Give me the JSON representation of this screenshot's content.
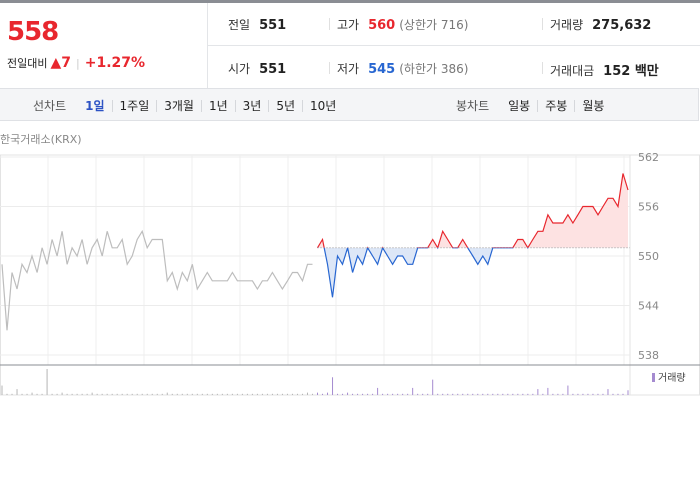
{
  "header": {
    "price": "558",
    "change_label": "전일대비",
    "change": "7",
    "change_rate": "+1.27%"
  },
  "info": {
    "rows": [
      [
        {
          "label": "전일",
          "value": "551"
        },
        {
          "label": "고가",
          "value": "560",
          "note": "(상한가 716)",
          "tone": "up"
        },
        {
          "label": "거래량",
          "value": "275,632"
        }
      ],
      [
        {
          "label": "시가",
          "value": "551"
        },
        {
          "label": "저가",
          "value": "545",
          "note": "(하한가 386)",
          "tone": "down"
        },
        {
          "label": "거래대금",
          "value": "152 백만"
        }
      ]
    ]
  },
  "tabs": {
    "line_label": "선차트",
    "line_periods": [
      "1일",
      "1주일",
      "3개월",
      "1년",
      "3년",
      "5년",
      "10년"
    ],
    "active_index": 0,
    "candle_label": "봉차트",
    "candle_periods": [
      "일봉",
      "주봉",
      "월봉"
    ]
  },
  "chart_data": {
    "type": "line",
    "source": "한국거래소(KRX)",
    "ylim": [
      538,
      562
    ],
    "yticks": [
      562,
      556,
      550,
      544,
      538
    ],
    "grid": true,
    "base": 551,
    "up_color": "#e8272e",
    "down_color": "#2766d1",
    "up_fill": "#fde2e2",
    "down_fill": "#dde7f7",
    "volume_label": "거래량",
    "volume_color": "#a58bd0",
    "series": [
      {
        "color": "#bdbdbd",
        "values": [
          549,
          541,
          548,
          546,
          549,
          548,
          550,
          548,
          551,
          549,
          552,
          550,
          553,
          549,
          551,
          550,
          552,
          549,
          551,
          552,
          550,
          553,
          551,
          551,
          552,
          549,
          550,
          552,
          553,
          551,
          552,
          552,
          552,
          547,
          548,
          546,
          548,
          547,
          549,
          546,
          547,
          548,
          547,
          547,
          547,
          547,
          548,
          547,
          547,
          547,
          547,
          546,
          547,
          547,
          548,
          547,
          546,
          547,
          548,
          548,
          547,
          549,
          549
        ],
        "volume": [
          8,
          1,
          1,
          5,
          1,
          1,
          2,
          1,
          1,
          22,
          1,
          1,
          2,
          1,
          1,
          1,
          1,
          1,
          2,
          1,
          1,
          1,
          1,
          1,
          1,
          1,
          1,
          1,
          1,
          1,
          1,
          1,
          1,
          2,
          1,
          1,
          1,
          1,
          1,
          1,
          1,
          1,
          1,
          1,
          1,
          1,
          1,
          1,
          1,
          1,
          1,
          1,
          1,
          1,
          1,
          1,
          1,
          1,
          1,
          1,
          1,
          2,
          1
        ]
      },
      {
        "values": [
          551,
          552,
          549,
          545,
          550,
          549,
          551,
          548,
          550,
          549,
          551,
          550,
          549,
          551,
          550,
          549,
          550,
          550,
          549,
          549,
          551,
          551,
          551,
          552,
          551,
          553,
          552,
          551,
          551,
          552,
          551,
          550,
          549,
          550,
          549,
          551,
          551,
          551,
          551,
          551,
          552,
          552,
          551,
          552,
          553,
          553,
          555,
          554,
          554,
          554,
          555,
          554,
          555,
          556,
          556,
          556,
          555,
          556,
          557,
          557,
          556,
          560,
          558
        ],
        "volume": [
          2,
          1,
          2,
          15,
          1,
          1,
          2,
          1,
          1,
          1,
          1,
          1,
          6,
          1,
          1,
          1,
          1,
          1,
          1,
          6,
          1,
          1,
          1,
          13,
          1,
          1,
          1,
          1,
          1,
          1,
          1,
          1,
          1,
          1,
          1,
          1,
          1,
          1,
          1,
          1,
          1,
          1,
          1,
          1,
          5,
          1,
          6,
          1,
          1,
          1,
          8,
          1,
          1,
          1,
          1,
          1,
          1,
          1,
          5,
          1,
          1,
          1,
          4
        ]
      }
    ]
  }
}
